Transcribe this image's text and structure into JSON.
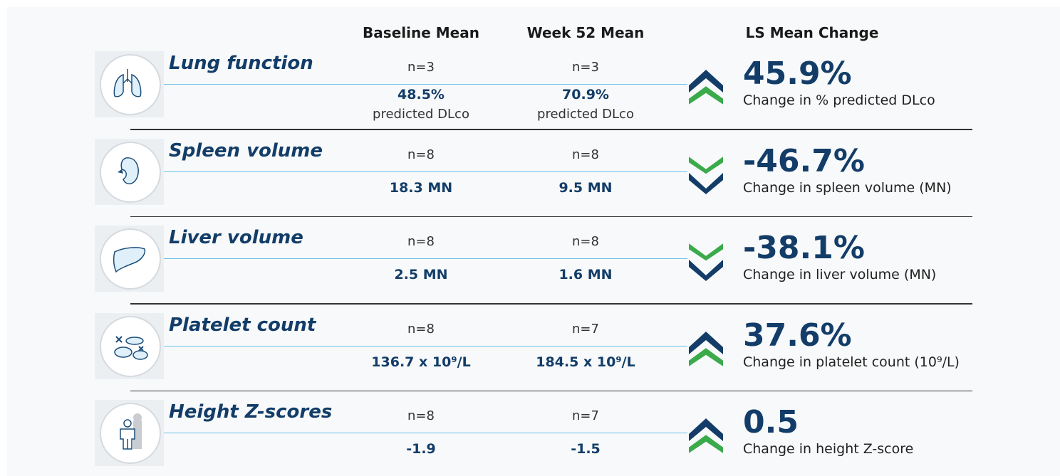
{
  "header": {
    "col_baseline": "Baseline Mean",
    "col_week52": "Week 52 Mean",
    "col_change": "LS Mean Change"
  },
  "rows": [
    {
      "title": "Lung function",
      "baseline": {
        "n": "n=3",
        "value": "48.5%",
        "sub": "predicted DLco"
      },
      "week52": {
        "n": "n=3",
        "value": "70.9%",
        "sub": "predicted DLco"
      },
      "change": {
        "value": "45.9%",
        "caption": "Change in % predicted DLco"
      },
      "trend": "up"
    },
    {
      "title": "Spleen volume",
      "baseline": {
        "n": "n=8",
        "value": "18.3 MN"
      },
      "week52": {
        "n": "n=8",
        "value": "9.5 MN"
      },
      "change": {
        "value": "-46.7%",
        "caption": "Change in spleen volume (MN)"
      },
      "trend": "down"
    },
    {
      "title": "Liver volume",
      "baseline": {
        "n": "n=8",
        "value": "2.5 MN"
      },
      "week52": {
        "n": "n=8",
        "value": "1.6 MN"
      },
      "change": {
        "value": "-38.1%",
        "caption": "Change in liver volume (MN)"
      },
      "trend": "down"
    },
    {
      "title": "Platelet count",
      "baseline": {
        "n": "n=8",
        "value": "136.7 x 10⁹/L"
      },
      "week52": {
        "n": "n=7",
        "value": "184.5 x 10⁹/L"
      },
      "change": {
        "value": "37.6%",
        "caption": "Change in platelet count (10⁹/L)"
      },
      "trend": "up"
    },
    {
      "title": "Height Z-scores",
      "baseline": {
        "n": "n=8",
        "value": "-1.9"
      },
      "week52": {
        "n": "n=7",
        "value": "-1.5"
      },
      "change": {
        "value": "0.5",
        "caption": "Change in height Z-score"
      },
      "trend": "up"
    }
  ]
}
